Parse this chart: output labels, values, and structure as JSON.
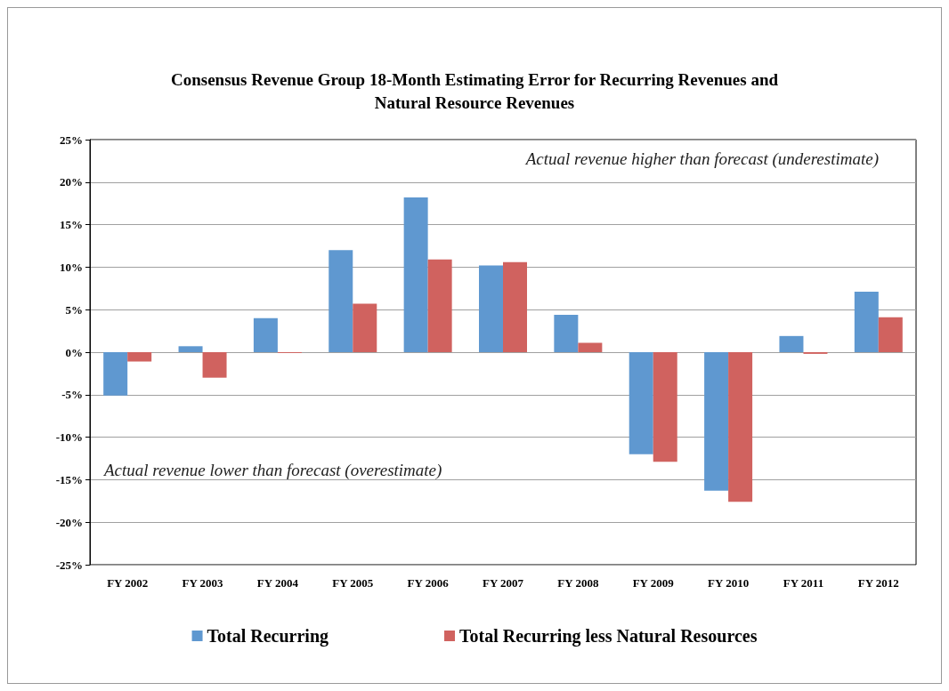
{
  "chart_data": {
    "type": "bar",
    "title": "Consensus Revenue Group 18-Month Estimating Error for Recurring Revenues and\nNatural Resource Revenues",
    "categories": [
      "FY 2002",
      "FY 2003",
      "FY 2004",
      "FY 2005",
      "FY 2006",
      "FY 2007",
      "FY 2008",
      "FY 2009",
      "FY 2010",
      "FY 2011",
      "FY 2012"
    ],
    "series": [
      {
        "name": "Total Recurring",
        "color": "#5f98d0",
        "values": [
          -5.1,
          0.7,
          4.0,
          12.0,
          18.2,
          10.2,
          4.4,
          -12.0,
          -16.3,
          1.9,
          7.1
        ]
      },
      {
        "name": "Total Recurring less Natural Resources",
        "color": "#d0625f",
        "values": [
          -1.1,
          -3.0,
          -0.1,
          5.7,
          10.9,
          10.6,
          1.1,
          -12.9,
          -17.6,
          -0.2,
          4.1
        ]
      }
    ],
    "ylim": [
      -25,
      25
    ],
    "yticks": [
      {
        "value": -25,
        "label": "-25%"
      },
      {
        "value": -20,
        "label": "-20%"
      },
      {
        "value": -15,
        "label": "-15%"
      },
      {
        "value": -10,
        "label": "-10%"
      },
      {
        "value": -5,
        "label": "-5%"
      },
      {
        "value": 0,
        "label": "0%"
      },
      {
        "value": 5,
        "label": "5%"
      },
      {
        "value": 10,
        "label": "10%"
      },
      {
        "value": 15,
        "label": "15%"
      },
      {
        "value": 20,
        "label": "20%"
      },
      {
        "value": 25,
        "label": "25%"
      }
    ],
    "grid": "y",
    "legend": "bottom",
    "annotations": [
      "Actual revenue higher than forecast (underestimate)",
      "Actual revenue lower than forecast (overestimate)"
    ]
  }
}
